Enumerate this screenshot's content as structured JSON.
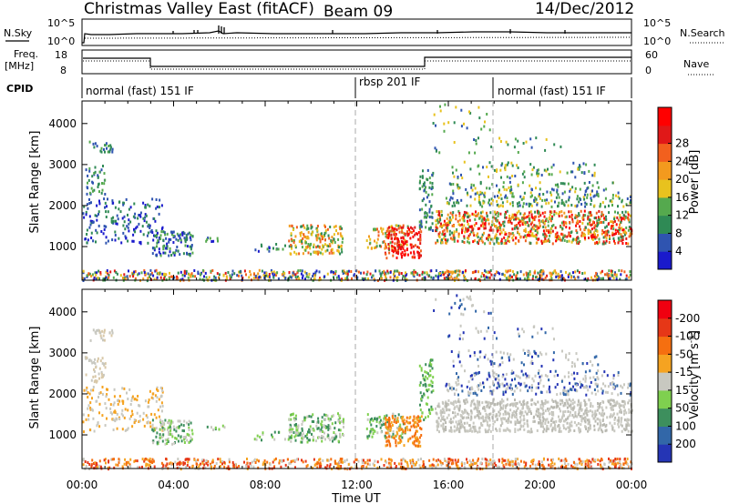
{
  "header": {
    "title": "Christmas Valley East (fitACF)",
    "beam": "Beam 09",
    "date": "14/Dec/2012"
  },
  "panel_labels": {
    "nsky": "N.Sky",
    "nsearch": "N.Search",
    "freq": "Freq.",
    "freq_unit": "[MHz]",
    "nave": "Nave",
    "cpid": "CPID",
    "nsky_ticks": [
      "10^5",
      "10^0"
    ],
    "nsearch_ticks": [
      "10^5",
      "10^0"
    ],
    "freq_ticks": [
      "18",
      "8"
    ],
    "nave_ticks": [
      "60",
      "0"
    ]
  },
  "cpid_segments": [
    {
      "label": "normal (fast) 151 IF",
      "start": 0.0
    },
    {
      "label": "rbsp 201 IF",
      "start": 12.0
    },
    {
      "label": "normal (fast) 151 IF",
      "start": 18.0
    }
  ],
  "chart_data": [
    {
      "type": "heatmap",
      "name": "power",
      "ylabel": "Slant Range [km]",
      "xlabel": "Time UT",
      "x_ticks": [
        "00:00",
        "04:00",
        "08:00",
        "12:00",
        "16:00",
        "20:00",
        "00:00"
      ],
      "y_ticks": [
        "1000",
        "2000",
        "3000",
        "4000"
      ],
      "ylim": [
        180,
        4550
      ],
      "xlim": [
        0,
        24
      ],
      "colorbar_label": "Power [dB]",
      "colorbar_ticks": [
        "4",
        "8",
        "12",
        "16",
        "20",
        "24",
        "28"
      ],
      "colorbar_colors": [
        "#1a1acc",
        "#2f54b0",
        "#2f8a55",
        "#55a94e",
        "#e8c21e",
        "#f39a1e",
        "#f2601e",
        "#e01818",
        "#ff0000"
      ]
    },
    {
      "type": "heatmap",
      "name": "velocity",
      "ylabel": "Slant Range [km]",
      "xlabel": "Time UT",
      "x_ticks": [
        "00:00",
        "04:00",
        "08:00",
        "12:00",
        "16:00",
        "20:00",
        "00:00"
      ],
      "y_ticks": [
        "1000",
        "2000",
        "3000",
        "4000"
      ],
      "ylim": [
        180,
        4550
      ],
      "xlim": [
        0,
        24
      ],
      "colorbar_label": "Velocity [m s",
      "colorbar_exp": "-1",
      "colorbar_ticks": [
        "200",
        "100",
        "50",
        "15",
        "-15",
        "-50",
        "-100",
        "-200"
      ],
      "colorbar_colors": [
        "#2535b5",
        "#3267a8",
        "#3d8f5d",
        "#7fd04f",
        "#c8c8c0",
        "#f5a321",
        "#f56f10",
        "#e63717",
        "#f00010"
      ]
    }
  ],
  "time_label": "Time UT"
}
